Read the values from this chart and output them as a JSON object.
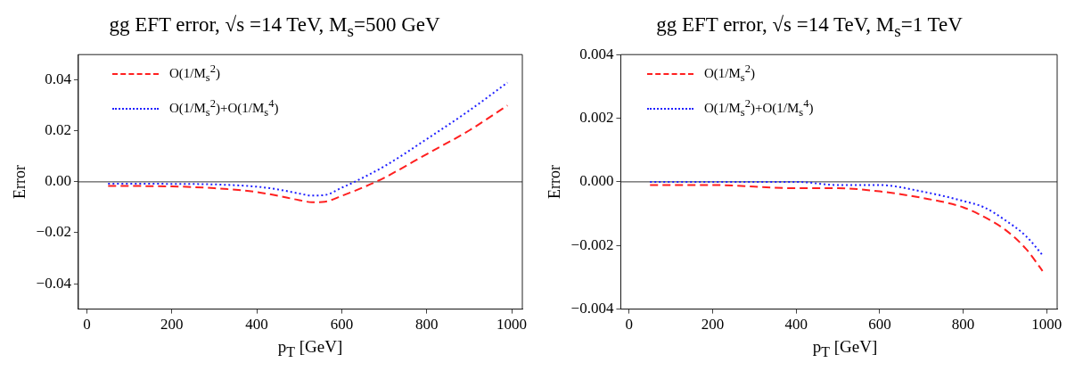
{
  "chart_data": [
    {
      "type": "line",
      "title": "gg EFT error, √s =14 TeV, M$_{s}$=500 GeV",
      "xlabel": "p$_{T}$ [GeV]",
      "ylabel": "Error",
      "xlim": [
        -20,
        1025
      ],
      "xticks": [
        0,
        200,
        400,
        600,
        800,
        1000
      ],
      "ylim": [
        -0.05,
        0.05
      ],
      "yticks": [
        {
          "value": -0.04,
          "label": "−0.04"
        },
        {
          "value": -0.02,
          "label": "−0.02"
        },
        {
          "value": 0,
          "label": "0.00"
        },
        {
          "value": 0.02,
          "label": "0.02"
        },
        {
          "value": 0.04,
          "label": "0.04"
        }
      ],
      "grid": false,
      "legend": "top left",
      "marker": "none",
      "ref_lines": [
        {
          "axis": "y",
          "value": 0,
          "color": "#333333"
        }
      ],
      "series": [
        {
          "name": "O(1/M$_{s}$$^{2}$)",
          "color": "#ff2020",
          "line_style": "dashed",
          "x": [
            50,
            200,
            300,
            400,
            450,
            500,
            530,
            560,
            600,
            650,
            680,
            700,
            800,
            900,
            990
          ],
          "values": [
            -0.0016,
            -0.0018,
            -0.0025,
            -0.004,
            -0.0055,
            -0.0072,
            -0.008,
            -0.0078,
            -0.0055,
            -0.0022,
            0,
            0.0016,
            0.0109,
            0.0202,
            0.03
          ]
        },
        {
          "name": "O(1/M$_{s}$$^{2}$)+O(1/M$_{s}$$^{4}$)",
          "color": "#2020ff",
          "line_style": "dotted",
          "x": [
            50,
            200,
            300,
            400,
            450,
            500,
            530,
            560,
            600,
            630,
            700,
            800,
            900,
            990
          ],
          "values": [
            -0.0007,
            -0.0008,
            -0.001,
            -0.0019,
            -0.003,
            -0.0046,
            -0.0054,
            -0.0052,
            -0.0023,
            0,
            0.0061,
            0.0168,
            0.028,
            0.039
          ]
        }
      ]
    },
    {
      "type": "line",
      "title": "gg EFT error, √s =14 TeV, M$_{s}$=1 TeV",
      "xlabel": "p$_{T}$ [GeV]",
      "ylabel": "Error",
      "xlim": [
        -20,
        1025
      ],
      "xticks": [
        0,
        200,
        400,
        600,
        800,
        1000
      ],
      "ylim": [
        -0.004,
        0.004
      ],
      "yticks": [
        {
          "value": -0.004,
          "label": "−0.004"
        },
        {
          "value": -0.002,
          "label": "−0.002"
        },
        {
          "value": 0,
          "label": "0.000"
        },
        {
          "value": 0.002,
          "label": "0.002"
        },
        {
          "value": 0.004,
          "label": "0.004"
        }
      ],
      "grid": false,
      "legend": "top left",
      "marker": "none",
      "ref_lines": [
        {
          "axis": "y",
          "value": 0,
          "color": "#333333"
        }
      ],
      "series": [
        {
          "name": "O(1/M$_{s}$$^{2}$)",
          "color": "#ff2020",
          "line_style": "dashed",
          "x": [
            50,
            200,
            400,
            500,
            600,
            700,
            800,
            850,
            900,
            950,
            990
          ],
          "values": [
            -0.0001,
            -0.0001,
            -0.0002,
            -0.0002,
            -0.0003,
            -0.0005,
            -0.0008,
            -0.0011,
            -0.0015,
            -0.0021,
            -0.0028
          ]
        },
        {
          "name": "O(1/M$_{s}$$^{2}$)+O(1/M$_{s}$$^{4}$)",
          "color": "#2020ff",
          "line_style": "dotted",
          "x": [
            50,
            400,
            500,
            600,
            700,
            800,
            850,
            900,
            950,
            990
          ],
          "values": [
            0,
            0,
            -0.0001,
            -0.0001,
            -0.0003,
            -0.0006,
            -0.0008,
            -0.0012,
            -0.0017,
            -0.0023
          ]
        }
      ]
    }
  ]
}
